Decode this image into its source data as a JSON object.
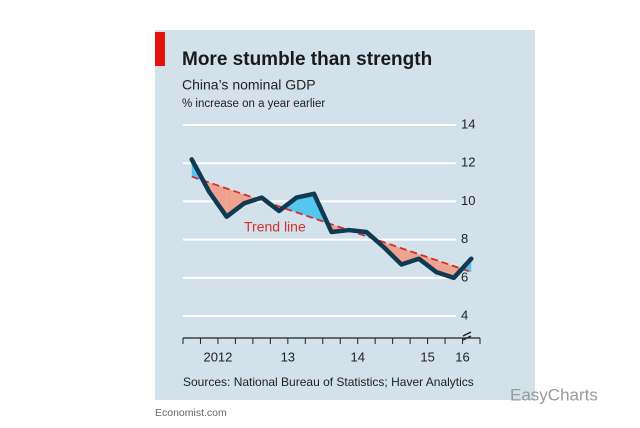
{
  "chart_data": {
    "type": "line",
    "title": "More stumble than strength",
    "subtitle": "China’s nominal GDP",
    "y_label": "% increase on a year earlier",
    "source": "Sources: National Bureau of Statistics; Haver Analytics",
    "credit": "Economist.com",
    "watermark": "EasyCharts",
    "x": [
      2012.125,
      2012.375,
      2012.625,
      2012.875,
      2013.125,
      2013.375,
      2013.625,
      2013.875,
      2014.125,
      2014.375,
      2014.625,
      2014.875,
      2015.125,
      2015.375,
      2015.625,
      2015.875,
      2016.125
    ],
    "series": [
      {
        "color": "#0e3b53",
        "values": [
          12.2,
          10.5,
          9.2,
          9.9,
          10.2,
          9.5,
          10.2,
          10.4,
          8.4,
          8.5,
          8.4,
          7.6,
          6.7,
          7.0,
          6.3,
          6.0,
          7.0
        ]
      }
    ],
    "trend": {
      "label": "Trend line",
      "color": "#d3302b",
      "x": [
        2012.125,
        2016.125
      ],
      "values": [
        11.3,
        6.3
      ]
    },
    "above_color": "#55c6ef",
    "below_color": "#efa38f",
    "xlim": [
      2012,
      2016.25
    ],
    "xticks": [
      {
        "value": 2012.5,
        "label": "2012"
      },
      {
        "value": 2013.5,
        "label": "13"
      },
      {
        "value": 2014.5,
        "label": "14"
      },
      {
        "value": 2015.5,
        "label": "15"
      },
      {
        "value": 2016.0,
        "label": "16"
      }
    ],
    "xminor_ticks": [
      2012,
      2012.25,
      2012.5,
      2012.75,
      2013,
      2013.25,
      2013.5,
      2013.75,
      2014,
      2014.25,
      2014.5,
      2014.75,
      2015,
      2015.25,
      2015.5,
      2015.75,
      2016,
      2016.25
    ],
    "ylim": [
      2.85,
      14
    ],
    "yticks": [
      4,
      6,
      8,
      10,
      12,
      14
    ],
    "grid": true
  }
}
